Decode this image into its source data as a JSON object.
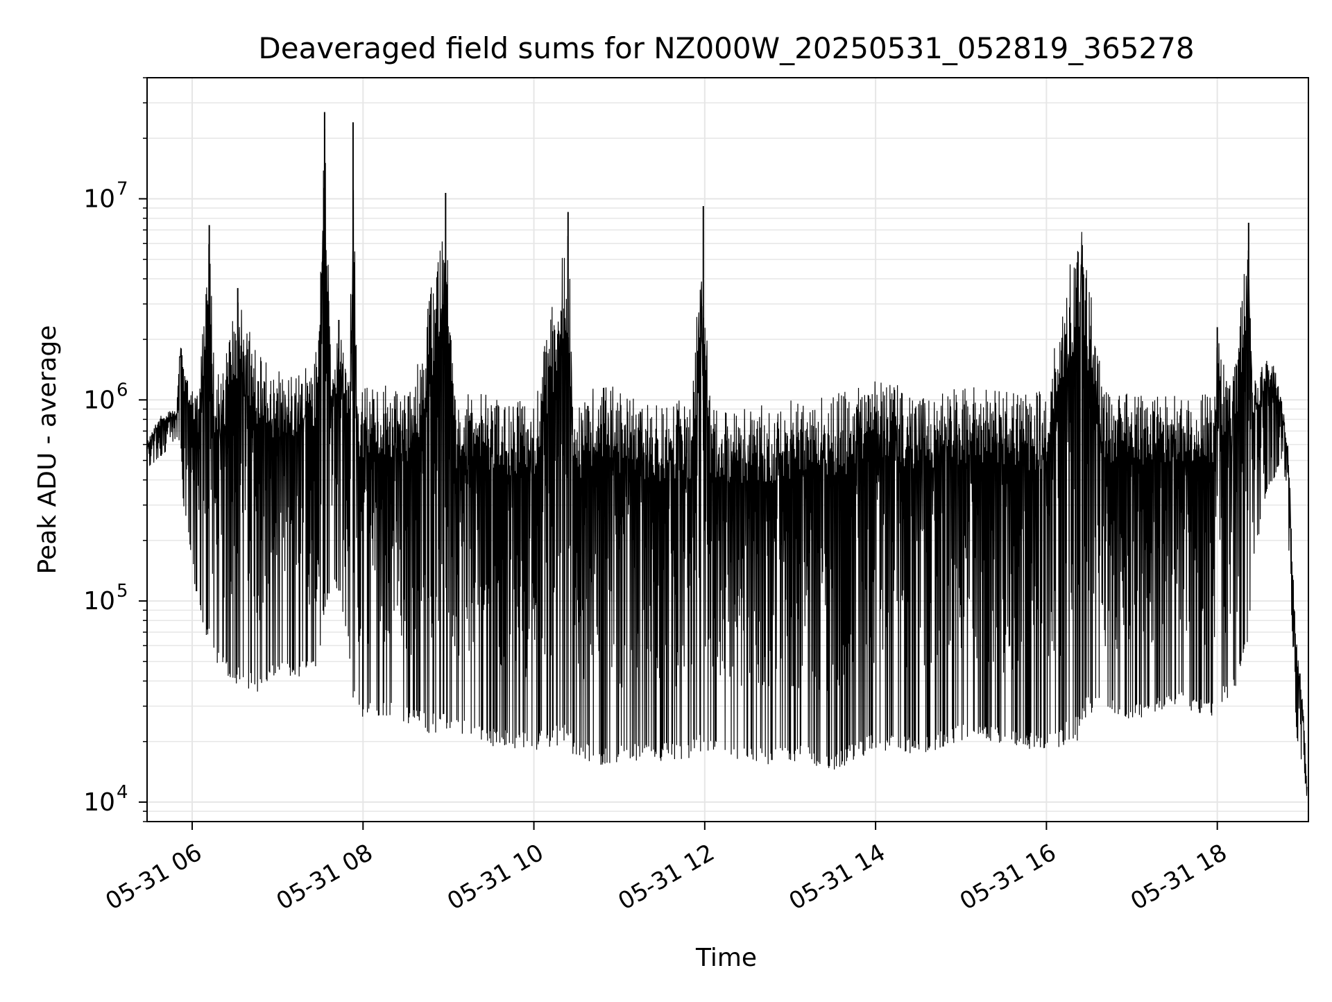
{
  "chart_data": {
    "type": "line",
    "title": "Deaveraged field sums for NZ000W_20250531_052819_365278",
    "xlabel": "Time",
    "ylabel": "Peak ADU - average",
    "yscale": "log",
    "grid": true,
    "grid_minor": true,
    "legend": "none",
    "xlim": [
      "2025-05-31 05:28:19",
      "2025-05-31 19:04:00"
    ],
    "ylim": [
      8000,
      40000000
    ],
    "x_ticks": [
      {
        "value": "2025-05-31 06:00",
        "label": "05-31 06"
      },
      {
        "value": "2025-05-31 08:00",
        "label": "05-31 08"
      },
      {
        "value": "2025-05-31 10:00",
        "label": "05-31 10"
      },
      {
        "value": "2025-05-31 12:00",
        "label": "05-31 12"
      },
      {
        "value": "2025-05-31 14:00",
        "label": "05-31 14"
      },
      {
        "value": "2025-05-31 16:00",
        "label": "05-31 16"
      },
      {
        "value": "2025-05-31 18:00",
        "label": "05-31 18"
      }
    ],
    "y_ticks": [
      {
        "value": 10000,
        "base": "10",
        "exp": "4"
      },
      {
        "value": 100000,
        "base": "10",
        "exp": "5"
      },
      {
        "value": 1000000,
        "base": "10",
        "exp": "6"
      },
      {
        "value": 10000000,
        "base": "10",
        "exp": "7"
      }
    ],
    "colors": {
      "line": "#000000",
      "grid": "#e6e6e6",
      "axes": "#000000",
      "background": "#ffffff"
    },
    "series": [
      {
        "x": [
          "2025-05-31 05:28",
          "2025-05-31 05:35",
          "2025-05-31 05:42",
          "2025-05-31 05:49",
          "2025-05-31 05:52",
          "2025-05-31 05:54",
          "2025-05-31 05:58",
          "2025-05-31 06:04",
          "2025-05-31 06:12",
          "2025-05-31 06:16",
          "2025-05-31 06:20",
          "2025-05-31 06:32",
          "2025-05-31 06:45",
          "2025-05-31 06:59",
          "2025-05-31 07:12",
          "2025-05-31 07:25",
          "2025-05-31 07:28",
          "2025-05-31 07:33",
          "2025-05-31 07:38",
          "2025-05-31 07:43",
          "2025-05-31 07:50",
          "2025-05-31 07:53",
          "2025-05-31 07:56",
          "2025-05-31 08:10",
          "2025-05-31 08:35",
          "2025-05-31 08:58",
          "2025-05-31 09:04",
          "2025-05-31 09:30",
          "2025-05-31 10:00",
          "2025-05-31 10:24",
          "2025-05-31 10:28",
          "2025-05-31 10:38",
          "2025-05-31 10:46",
          "2025-05-31 11:15",
          "2025-05-31 11:50",
          "2025-05-31 11:59",
          "2025-05-31 12:04",
          "2025-05-31 12:33",
          "2025-05-31 13:00",
          "2025-05-31 13:30",
          "2025-05-31 14:00",
          "2025-05-31 14:30",
          "2025-05-31 15:00",
          "2025-05-31 15:30",
          "2025-05-31 16:00",
          "2025-05-31 16:22",
          "2025-05-31 16:25",
          "2025-05-31 16:40",
          "2025-05-31 17:00",
          "2025-05-31 17:30",
          "2025-05-31 17:58",
          "2025-05-31 18:00",
          "2025-05-31 18:10",
          "2025-05-31 18:22",
          "2025-05-31 18:25",
          "2025-05-31 18:35",
          "2025-05-31 18:40",
          "2025-05-31 18:45",
          "2025-05-31 18:50",
          "2025-05-31 18:53",
          "2025-05-31 18:56",
          "2025-05-31 18:59",
          "2025-05-31 19:01",
          "2025-05-31 19:03"
        ],
        "upper": [
          620000,
          800000,
          900000,
          880000,
          2400000,
          1500000,
          1400000,
          1300000,
          7400000,
          1500000,
          1400000,
          3600000,
          1900000,
          1500000,
          1500000,
          1600000,
          2200000,
          27000000,
          1200000,
          2500000,
          1300000,
          24000000,
          1300000,
          1300000,
          1200000,
          10700000,
          1200000,
          1150000,
          1100000,
          8600000,
          1100000,
          1100000,
          1450000,
          1050000,
          1100000,
          9200000,
          1050000,
          1000000,
          1100000,
          1150000,
          1400000,
          1200000,
          1300000,
          1250000,
          1200000,
          8700000,
          8400000,
          1200000,
          1150000,
          1150000,
          1150000,
          2300000,
          1200000,
          7600000,
          1300000,
          1700000,
          1500000,
          1050000,
          600000,
          150000,
          60000,
          40000,
          25000,
          12000
        ],
        "lower": [
          450000,
          500000,
          550000,
          650000,
          600000,
          280000,
          200000,
          90000,
          60000,
          50000,
          45000,
          38000,
          35000,
          42000,
          40000,
          45000,
          45000,
          90000,
          120000,
          110000,
          60000,
          28000,
          25000,
          27000,
          24000,
          20000,
          22000,
          19000,
          18000,
          19000,
          17000,
          16000,
          15000,
          16000,
          16000,
          17000,
          18000,
          15000,
          16000,
          14000,
          18000,
          17000,
          20000,
          19000,
          18000,
          20000,
          25000,
          28000,
          25000,
          30000,
          26000,
          30000,
          32000,
          60000,
          150000,
          350000,
          400000,
          500000,
          200000,
          60000,
          20000,
          16000,
          15000,
          9000
        ]
      }
    ]
  }
}
